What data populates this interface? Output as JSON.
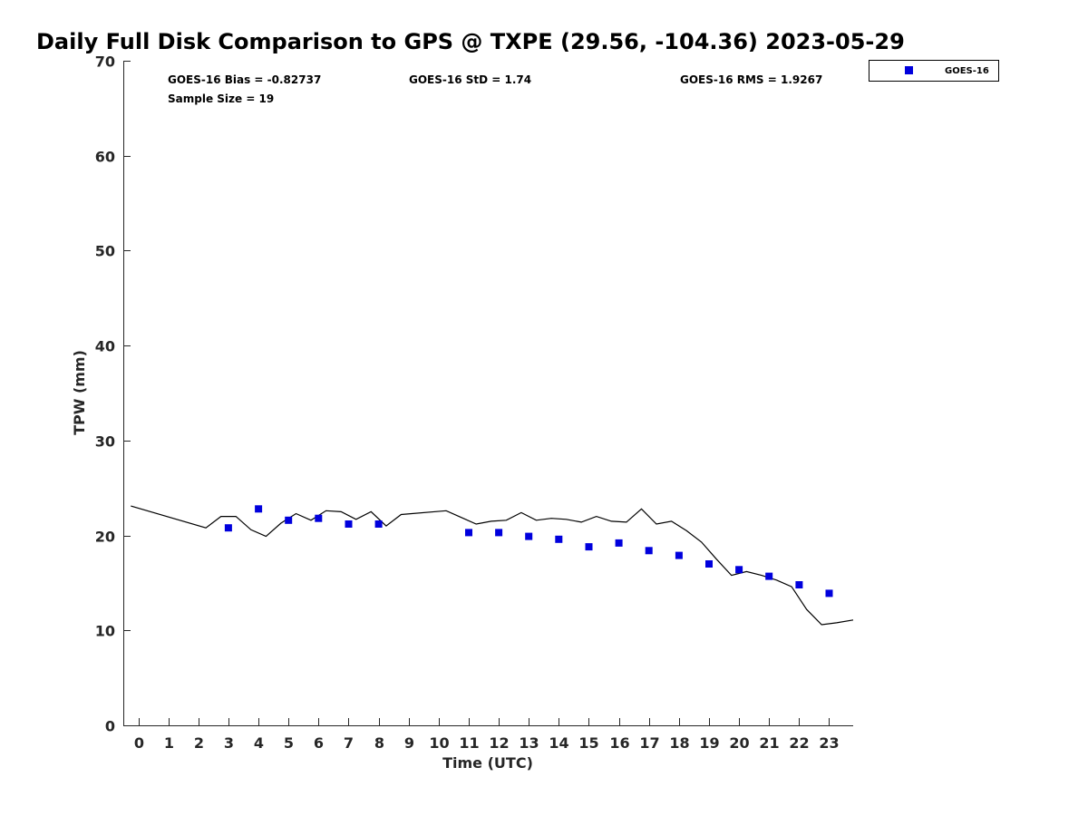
{
  "chart_data": {
    "type": "scatter",
    "title": "Daily Full Disk Comparison to GPS @ TXPE (29.56, -104.36) 2023-05-29",
    "xlabel": "Time (UTC)",
    "ylabel": "TPW (mm)",
    "xlim": [
      -0.5,
      23.8
    ],
    "ylim": [
      0,
      70
    ],
    "x_ticks": [
      0,
      1,
      2,
      3,
      4,
      5,
      6,
      7,
      8,
      9,
      10,
      11,
      12,
      13,
      14,
      15,
      16,
      17,
      18,
      19,
      20,
      21,
      22,
      23
    ],
    "y_ticks": [
      0,
      10,
      20,
      30,
      40,
      50,
      60,
      70
    ],
    "grid": false,
    "legend_position": "top-right",
    "stats": {
      "bias": "GOES-16 Bias = -0.82737",
      "std": "GOES-16 StD = 1.74",
      "rms": "GOES-16 RMS = 1.9267",
      "sample": "Sample Size = 19"
    },
    "series": [
      {
        "name": "GOES-16",
        "marker": "square",
        "color": "#0000dd",
        "x": [
          3,
          4,
          5,
          6,
          7,
          8,
          11,
          12,
          13,
          14,
          15,
          16,
          17,
          18,
          19,
          20,
          21,
          22,
          23
        ],
        "y": [
          20.8,
          22.8,
          21.6,
          21.8,
          21.2,
          21.2,
          20.3,
          20.3,
          19.9,
          19.6,
          18.8,
          19.2,
          18.4,
          17.9,
          17.0,
          16.4,
          15.7,
          14.8,
          13.9
        ]
      }
    ],
    "reference_line": {
      "color": "#000000",
      "x": [
        -0.25,
        2.25,
        2.75,
        3.25,
        3.75,
        4.25,
        4.75,
        5.25,
        5.75,
        6.25,
        6.75,
        7.25,
        7.75,
        8.25,
        8.75,
        10.25,
        10.75,
        11.25,
        11.75,
        12.25,
        12.75,
        13.25,
        13.75,
        14.25,
        14.75,
        15.25,
        15.75,
        16.25,
        16.75,
        17.25,
        17.75,
        18.25,
        18.75,
        19.25,
        19.75,
        20.25,
        20.75,
        21.25,
        21.75,
        22.25,
        22.75,
        23.25,
        23.8
      ],
      "y": [
        23.1,
        20.8,
        22.0,
        22.0,
        20.6,
        19.9,
        21.3,
        22.3,
        21.6,
        22.6,
        22.5,
        21.7,
        22.5,
        21.0,
        22.2,
        22.6,
        21.9,
        21.2,
        21.5,
        21.6,
        22.4,
        21.6,
        21.8,
        21.7,
        21.4,
        22.0,
        21.5,
        21.4,
        22.8,
        21.2,
        21.5,
        20.5,
        19.3,
        17.5,
        15.8,
        16.2,
        15.8,
        15.3,
        14.6,
        12.2,
        10.6,
        10.8,
        11.1
      ]
    }
  }
}
